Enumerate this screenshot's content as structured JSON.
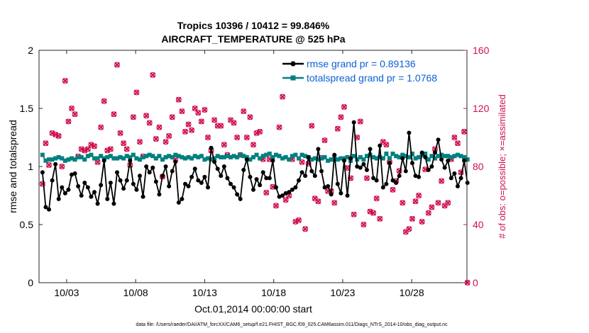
{
  "chart_data": {
    "type": "line",
    "title": "Tropics 10396 / 10412 = 99.846%",
    "subtitle": "AIRCRAFT_TEMPERATURE @ 525 hPa",
    "xlabel": "Oct.01,2014 00:00:00 start",
    "ylabel": "rmse and totalspread",
    "y2label": "# of obs: o=possible; ×=assimilated",
    "footer": "data file: /Users/raeder/DAI/ATM_forcXX/CAM6_setup/f.e21.FHIST_BGC.f09_025.CAM6assim.011/Diags_NTrS_2014-10/obs_diag_output.nc",
    "xlim": [
      1.0,
      32.0
    ],
    "ylim": [
      0,
      2
    ],
    "y2lim": [
      0,
      160
    ],
    "xticks": [
      3,
      8,
      13,
      18,
      23,
      28
    ],
    "xtick_labels": [
      "10/03",
      "10/08",
      "10/13",
      "10/18",
      "10/23",
      "10/28"
    ],
    "yticks": [
      0,
      0.5,
      1,
      1.5,
      2
    ],
    "ytick_labels": [
      "0",
      "0.5",
      "1",
      "1.5",
      "2"
    ],
    "y2ticks": [
      0,
      40,
      80,
      120,
      160
    ],
    "y2tick_labels": [
      "0",
      "40",
      "80",
      "120",
      "160"
    ],
    "series": [
      {
        "name": "rmse grand pr = 0.89136",
        "color": "#000000",
        "axis": "left",
        "values": [
          0.95,
          0.65,
          0.63,
          0.88,
          1.02,
          0.72,
          0.82,
          0.77,
          0.8,
          0.93,
          0.94,
          0.83,
          0.75,
          0.86,
          0.82,
          0.74,
          0.78,
          0.68,
          0.84,
          1.05,
          0.72,
          0.86,
          0.68,
          0.95,
          0.88,
          0.81,
          0.88,
          1.05,
          0.85,
          0.8,
          0.92,
          0.74,
          1.0,
          0.95,
          0.99,
          0.87,
          0.76,
          0.92,
          1.0,
          0.83,
          0.96,
          1.04,
          0.69,
          0.72,
          0.85,
          0.83,
          0.91,
          0.98,
          0.88,
          0.86,
          0.91,
          0.82,
          1.16,
          1.04,
          0.98,
          0.92,
          1.0,
          0.9,
          0.85,
          0.82,
          0.76,
          0.72,
          0.97,
          1.06,
          0.91,
          0.8,
          0.89,
          0.84,
          0.95,
          0.9,
          0.9,
          1.05,
          0.82,
          0.74,
          0.75,
          0.77,
          0.78,
          0.8,
          0.82,
          0.88,
          0.95,
          0.92,
          1.08,
          0.96,
          0.92,
          1.15,
          0.96,
          0.82,
          0.83,
          0.76,
          1.1,
          0.85,
          0.77,
          1.05,
          0.75,
          1.07,
          1.38,
          1.0,
          0.99,
          1.02,
          0.97,
          1.15,
          0.9,
          0.88,
          1.18,
          0.82,
          0.85,
          1.03,
          0.88,
          0.86,
          0.92,
          1.07,
          0.96,
          1.29,
          1.03,
          0.92,
          0.91,
          1.12,
          1.08,
          0.97,
          1.0,
          1.12,
          1.23,
          1.06,
          0.99,
          1.05,
          0.9,
          0.94,
          0.83,
          0.9,
          1.05,
          0.86
        ]
      },
      {
        "name": "totalspread grand pr = 1.0768",
        "color": "#008080",
        "axis": "left",
        "values": [
          1.1,
          1.05,
          1.06,
          1.06,
          1.07,
          1.08,
          1.07,
          1.05,
          1.06,
          1.07,
          1.06,
          1.08,
          1.08,
          1.06,
          1.09,
          1.1,
          1.07,
          1.07,
          1.09,
          1.07,
          1.08,
          1.09,
          1.07,
          1.07,
          1.08,
          1.07,
          1.09,
          1.08,
          1.1,
          1.07,
          1.06,
          1.08,
          1.09,
          1.1,
          1.09,
          1.07,
          1.09,
          1.06,
          1.08,
          1.09,
          1.08,
          1.1,
          1.09,
          1.08,
          1.07,
          1.08,
          1.07,
          1.09,
          1.08,
          1.09,
          1.06,
          1.07,
          1.06,
          1.07,
          1.09,
          1.08,
          1.08,
          1.09,
          1.08,
          1.09,
          1.08,
          1.1,
          1.09,
          1.08,
          1.06,
          1.08,
          1.1,
          1.07,
          1.09,
          1.1,
          1.11,
          1.08,
          1.1,
          1.09,
          1.07,
          1.08,
          1.06,
          1.09,
          1.1,
          1.07,
          1.1,
          1.09,
          1.08,
          1.06,
          1.07,
          1.06,
          1.07,
          1.08,
          1.05,
          1.06,
          1.08,
          1.06,
          1.07,
          1.07,
          1.08,
          1.05,
          1.09,
          1.06,
          1.08,
          1.06,
          1.09,
          1.1,
          1.08,
          1.07,
          1.08,
          1.07,
          1.11,
          1.07,
          1.11,
          1.09,
          1.08,
          1.1,
          1.09,
          1.08,
          1.11,
          1.07,
          1.08,
          1.1,
          1.11,
          1.06,
          1.09,
          1.07,
          1.09,
          1.1,
          1.09,
          1.09,
          1.08,
          1.09,
          1.1,
          1.09,
          1.08,
          1.06
        ]
      },
      {
        "name": "# of obs assimilated",
        "color": "#d0104c",
        "axis": "right",
        "marker": "x",
        "values": [
          68,
          96,
          81,
          103,
          102,
          101,
          80,
          139,
          111,
          120,
          116,
          87,
          92,
          91,
          92,
          95,
          94,
          83,
          107,
          125,
          91,
          92,
          116,
          150,
          103,
          96,
          92,
          81,
          114,
          131,
          97,
          87,
          115,
          110,
          143,
          99,
          107,
          73,
          97,
          101,
          114,
          85,
          126,
          118,
          104,
          109,
          105,
          120,
          117,
          111,
          119,
          100,
          91,
          112,
          108,
          108,
          95,
          88,
          112,
          110,
          100,
          88,
          118,
          100,
          114,
          95,
          103,
          104,
          85,
          62,
          85,
          66,
          53,
          107,
          128,
          57,
          60,
          85,
          42,
          43,
          83,
          37,
          82,
          108,
          58,
          56,
          86,
          98,
          63,
          63,
          55,
          106,
          114,
          121,
          79,
          72,
          47,
          100,
          111,
          40,
          72,
          49,
          48,
          58,
          44,
          97,
          95,
          83,
          64,
          70,
          77,
          55,
          35,
          37,
          44,
          56,
          60,
          42,
          78,
          48,
          52,
          92,
          55,
          70,
          53,
          55,
          85,
          100,
          96,
          76,
          104,
          0
        ]
      },
      {
        "name": "# of obs possible",
        "color": "#d0104c",
        "axis": "right",
        "marker": "o",
        "values": [
          68,
          96,
          81,
          103,
          102,
          101,
          80,
          139,
          111,
          120,
          116,
          87,
          92,
          91,
          92,
          95,
          94,
          83,
          107,
          125,
          91,
          92,
          116,
          150,
          103,
          96,
          92,
          81,
          114,
          131,
          97,
          87,
          115,
          110,
          143,
          99,
          107,
          73,
          97,
          101,
          114,
          85,
          126,
          118,
          104,
          109,
          105,
          120,
          117,
          111,
          119,
          100,
          91,
          112,
          108,
          108,
          95,
          88,
          112,
          110,
          100,
          88,
          118,
          100,
          114,
          95,
          103,
          104,
          85,
          62,
          85,
          66,
          53,
          107,
          128,
          57,
          60,
          85,
          42,
          43,
          83,
          37,
          82,
          108,
          58,
          56,
          86,
          98,
          63,
          63,
          55,
          106,
          114,
          121,
          79,
          72,
          47,
          100,
          111,
          40,
          72,
          49,
          48,
          58,
          44,
          97,
          95,
          83,
          64,
          70,
          77,
          55,
          35,
          37,
          44,
          56,
          60,
          42,
          78,
          48,
          52,
          92,
          55,
          70,
          53,
          55,
          85,
          100,
          96,
          76,
          104,
          0
        ]
      }
    ]
  }
}
